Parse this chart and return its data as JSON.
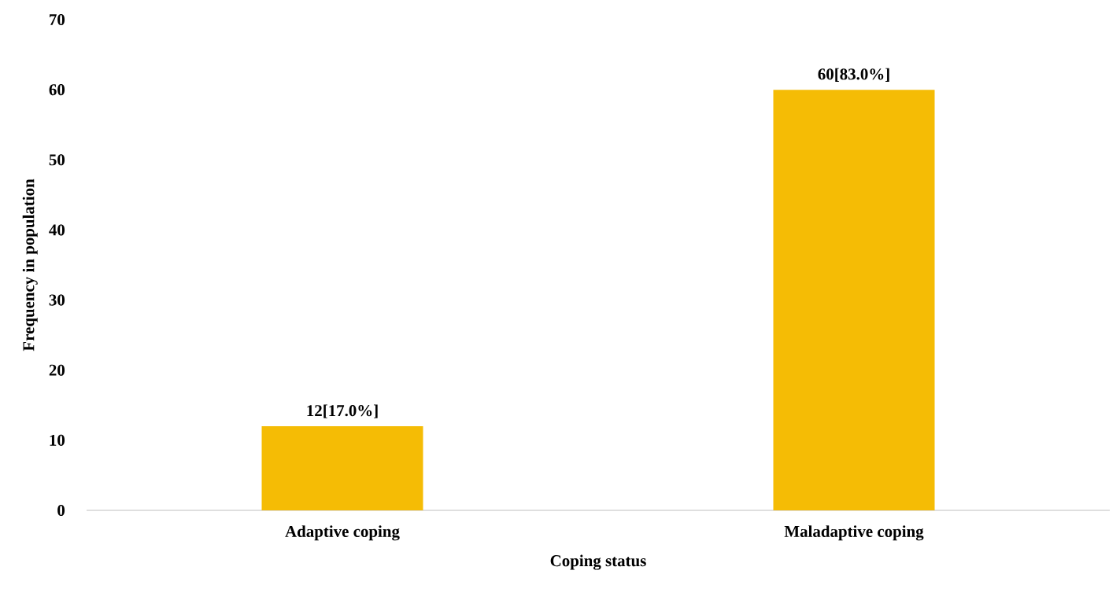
{
  "chart_data": {
    "type": "bar",
    "xlabel": "Coping status",
    "ylabel": "Frequency in population",
    "categories": [
      "Adaptive coping",
      "Maladaptive coping"
    ],
    "values": [
      12,
      60
    ],
    "value_labels": [
      "12[17.0%]",
      "60[83.0%]"
    ],
    "color": "#f5bc05",
    "ylim": [
      0,
      70
    ],
    "yticks": [
      0,
      10,
      20,
      30,
      40,
      50,
      60,
      70
    ],
    "grid": false
  }
}
